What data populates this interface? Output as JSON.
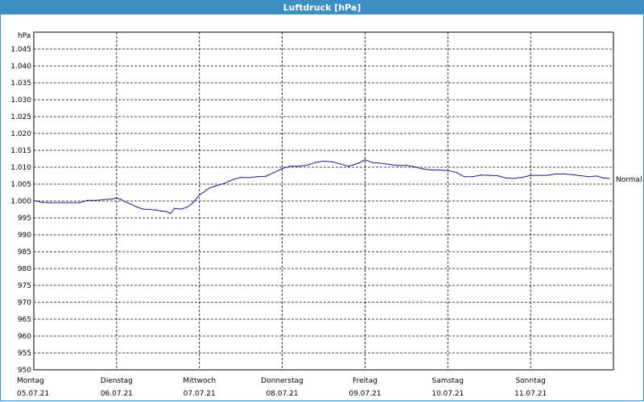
{
  "window": {
    "title": "Luftdruck [hPa]"
  },
  "chart_data": {
    "type": "line",
    "title": "Luftdruck [hPa]",
    "ylabel": "hPa",
    "xlabel": "",
    "ylim": [
      950,
      1050
    ],
    "yticks": [
      950,
      955,
      960,
      965,
      970,
      975,
      980,
      985,
      990,
      995,
      1000,
      1005,
      1010,
      1015,
      1020,
      1025,
      1030,
      1035,
      1040,
      1045
    ],
    "ytick_labels": [
      "950",
      "955",
      "960",
      "965",
      "970",
      "975",
      "980",
      "985",
      "990",
      "995",
      "1.000",
      "1.005",
      "1.010",
      "1.015",
      "1.020",
      "1.025",
      "1.030",
      "1.035",
      "1.040",
      "1.045"
    ],
    "xlim": [
      0,
      7
    ],
    "xticks": [
      {
        "day": "Montag",
        "date": "05.07.21"
      },
      {
        "day": "Dienstag",
        "date": "06.07.21"
      },
      {
        "day": "Mittwoch",
        "date": "07.07.21"
      },
      {
        "day": "Donnerstag",
        "date": "08.07.21"
      },
      {
        "day": "Freitag",
        "date": "09.07.21"
      },
      {
        "day": "Samstag",
        "date": "10.07.21"
      },
      {
        "day": "Sonntag",
        "date": "11.07.21"
      }
    ],
    "grid": true,
    "reference_label": "Normal",
    "reference_value": 1005,
    "series": [
      {
        "color": "#1a1a8c",
        "x": [
          0,
          0.03,
          0.1,
          0.2,
          0.35,
          0.55,
          0.65,
          0.75,
          0.85,
          0.95,
          1.0,
          1.05,
          1.1,
          1.15,
          1.25,
          1.32,
          1.4,
          1.48,
          1.55,
          1.6,
          1.65,
          1.7,
          1.78,
          1.85,
          1.92,
          2.0,
          2.05,
          2.1,
          2.15,
          2.2,
          2.3,
          2.4,
          2.5,
          2.6,
          2.7,
          2.8,
          2.9,
          3.0,
          3.1,
          3.2,
          3.3,
          3.4,
          3.5,
          3.6,
          3.7,
          3.8,
          3.87,
          3.93,
          4.0,
          4.1,
          4.2,
          4.3,
          4.4,
          4.5,
          4.6,
          4.7,
          4.8,
          4.9,
          5.0,
          5.1,
          5.2,
          5.3,
          5.4,
          5.5,
          5.6,
          5.7,
          5.8,
          5.9,
          6.0,
          6.1,
          6.2,
          6.3,
          6.4,
          6.5,
          6.6,
          6.7,
          6.8,
          6.88,
          6.95
        ],
        "values": [
          1000.1,
          1000.0,
          999.6,
          999.5,
          999.5,
          999.5,
          1000.2,
          1000.2,
          1000.4,
          1000.6,
          1000.9,
          1000.5,
          999.8,
          999.3,
          998.2,
          997.6,
          997.5,
          997.3,
          997.0,
          996.9,
          996.3,
          997.8,
          997.6,
          998.2,
          999.4,
          1001.8,
          1002.6,
          1003.5,
          1004.1,
          1004.5,
          1005.2,
          1006.3,
          1007.0,
          1006.9,
          1007.2,
          1007.3,
          1008.4,
          1009.6,
          1010.3,
          1010.3,
          1010.6,
          1011.4,
          1011.8,
          1011.6,
          1011.0,
          1010.3,
          1010.8,
          1011.3,
          1012.2,
          1011.3,
          1011.2,
          1010.8,
          1010.5,
          1010.6,
          1010.1,
          1009.5,
          1009.2,
          1009.2,
          1009.0,
          1008.5,
          1007.2,
          1007.2,
          1007.7,
          1007.6,
          1007.5,
          1006.8,
          1006.7,
          1007.0,
          1007.6,
          1007.6,
          1007.6,
          1008.0,
          1008.0,
          1007.8,
          1007.5,
          1007.2,
          1007.4,
          1006.8,
          1006.7
        ]
      }
    ]
  }
}
